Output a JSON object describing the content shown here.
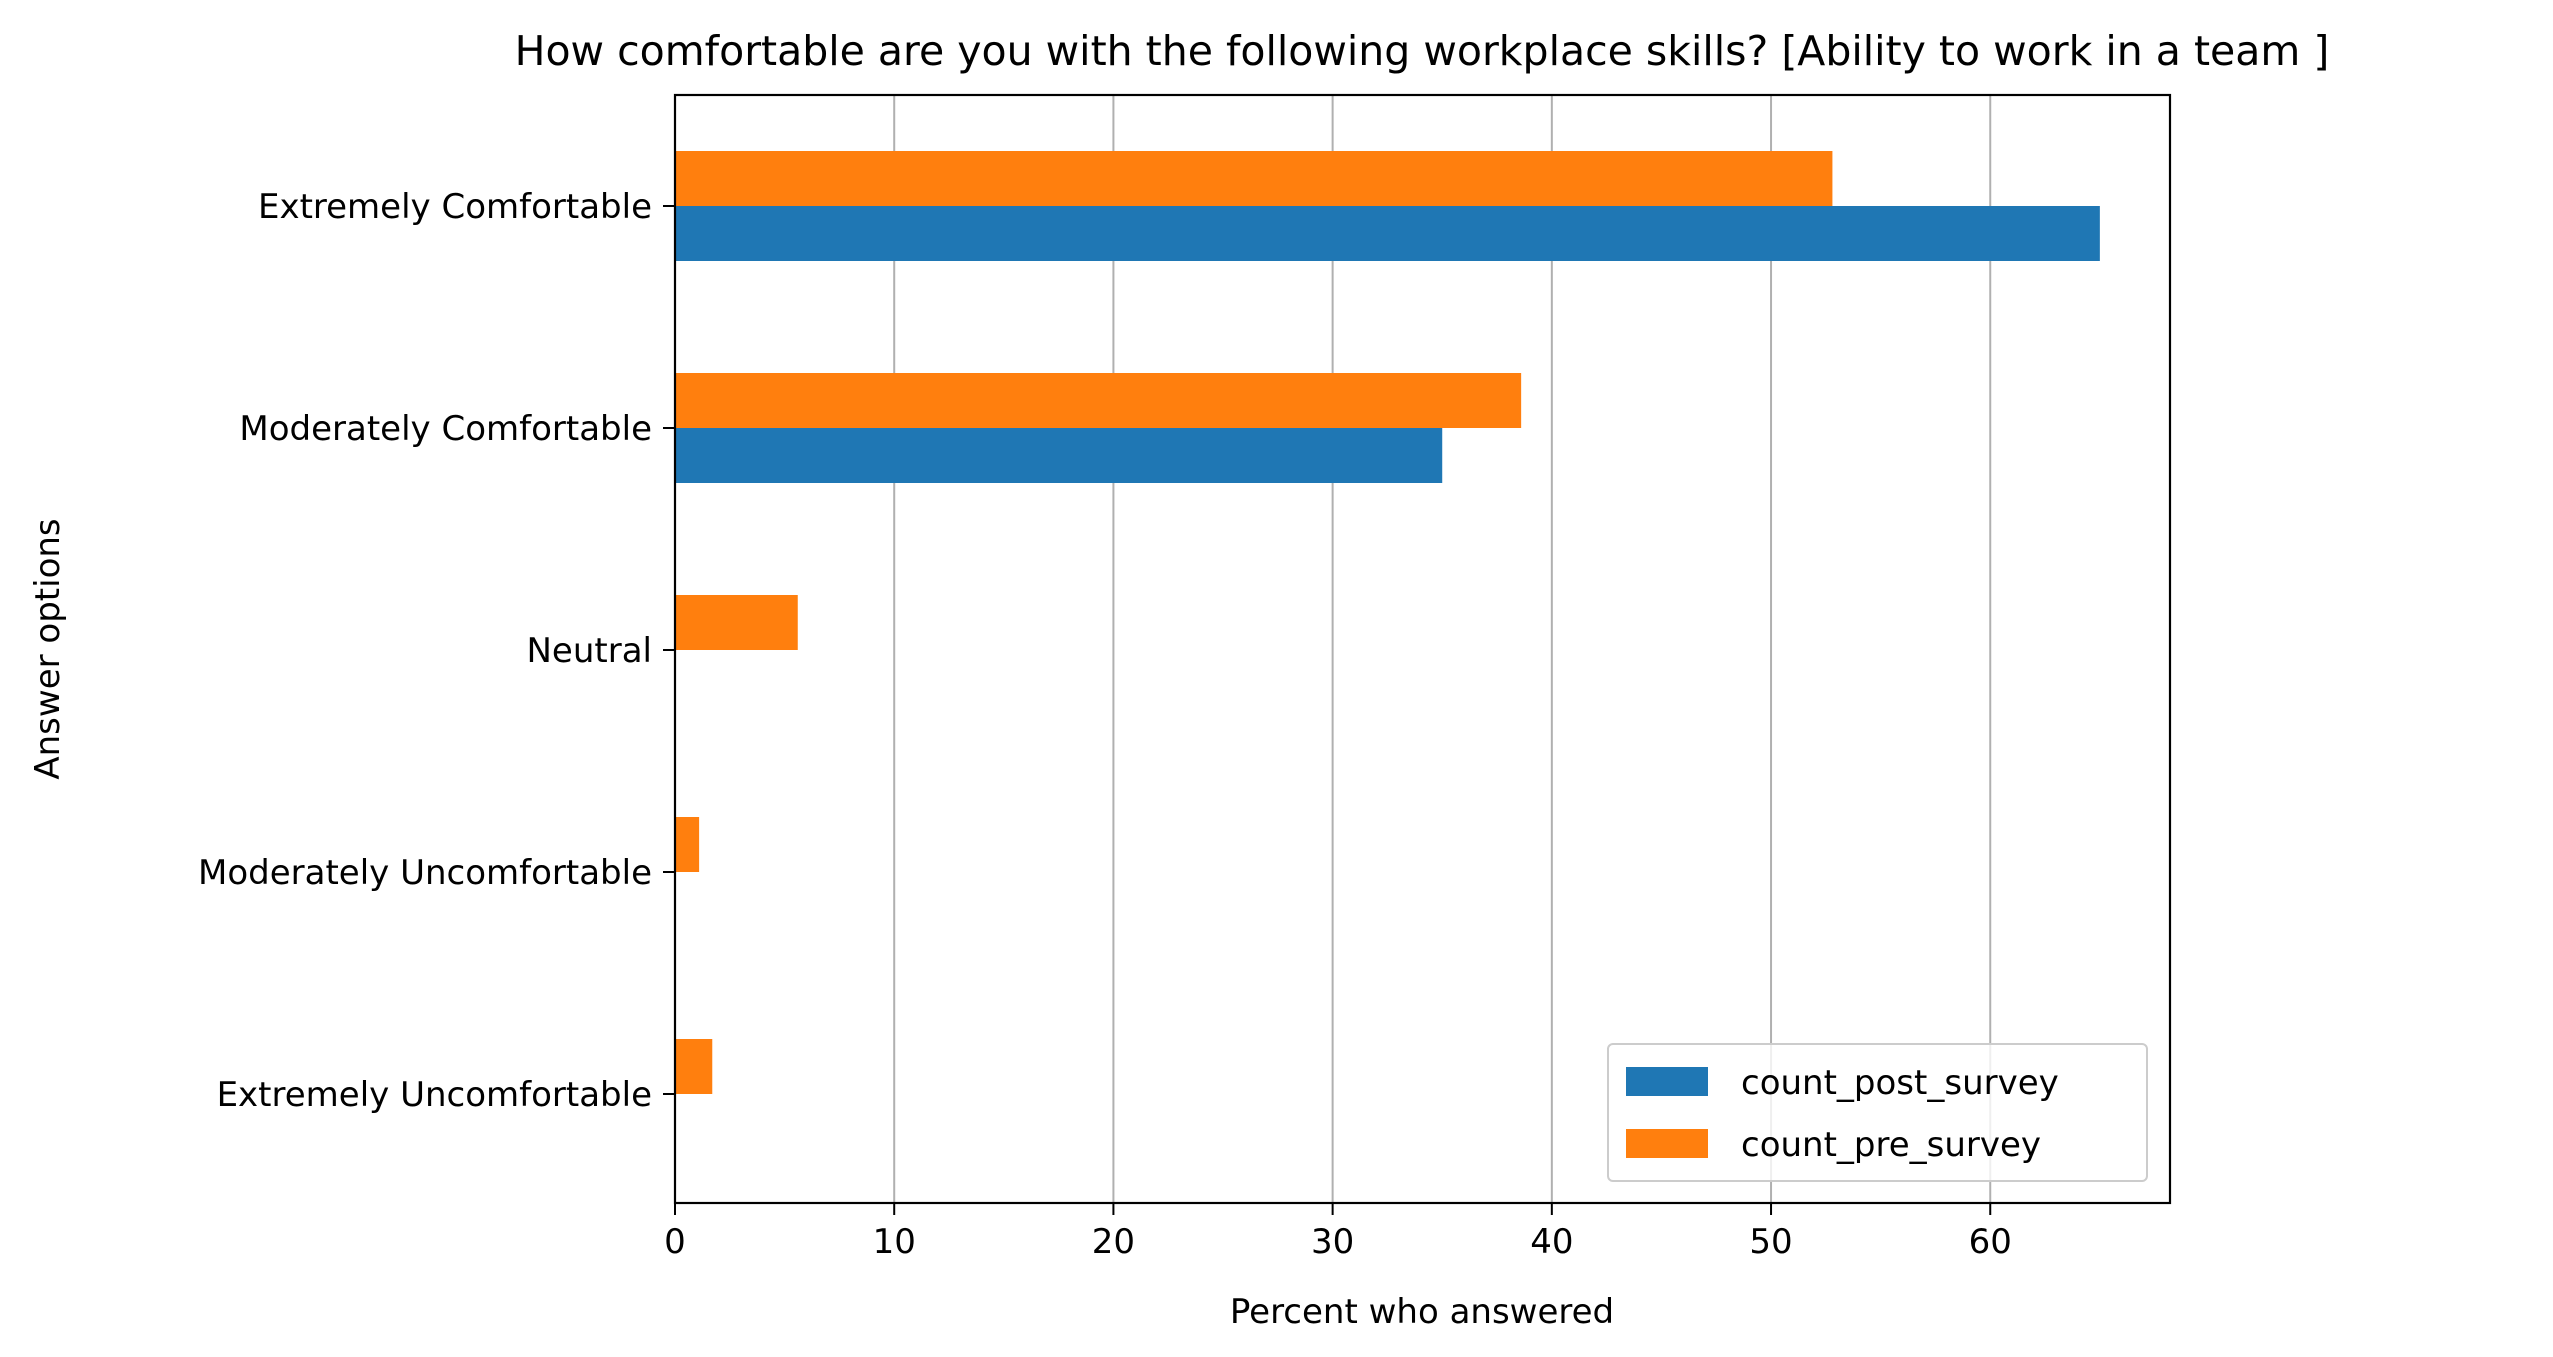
{
  "chart_data": {
    "type": "bar",
    "orientation": "horizontal",
    "title": "How comfortable are you with the following workplace skills? [Ability to work in a team ]",
    "xlabel": "Percent who answered",
    "ylabel": "Answer options",
    "xlim": [
      0,
      68.2
    ],
    "xticks": [
      0,
      10,
      20,
      30,
      40,
      50,
      60
    ],
    "grid": "x",
    "legend_position": "lower-right",
    "categories": [
      "Extremely Comfortable",
      "Moderately Comfortable",
      "Neutral",
      "Moderately Uncomfortable",
      "Extremely Uncomfortable"
    ],
    "series": [
      {
        "name": "count_post_survey",
        "color": "#1f77b4",
        "values": [
          65.0,
          35.0,
          0,
          0,
          0
        ]
      },
      {
        "name": "count_pre_survey",
        "color": "#ff7f0e",
        "values": [
          52.8,
          38.6,
          5.6,
          1.1,
          1.7
        ]
      }
    ]
  }
}
